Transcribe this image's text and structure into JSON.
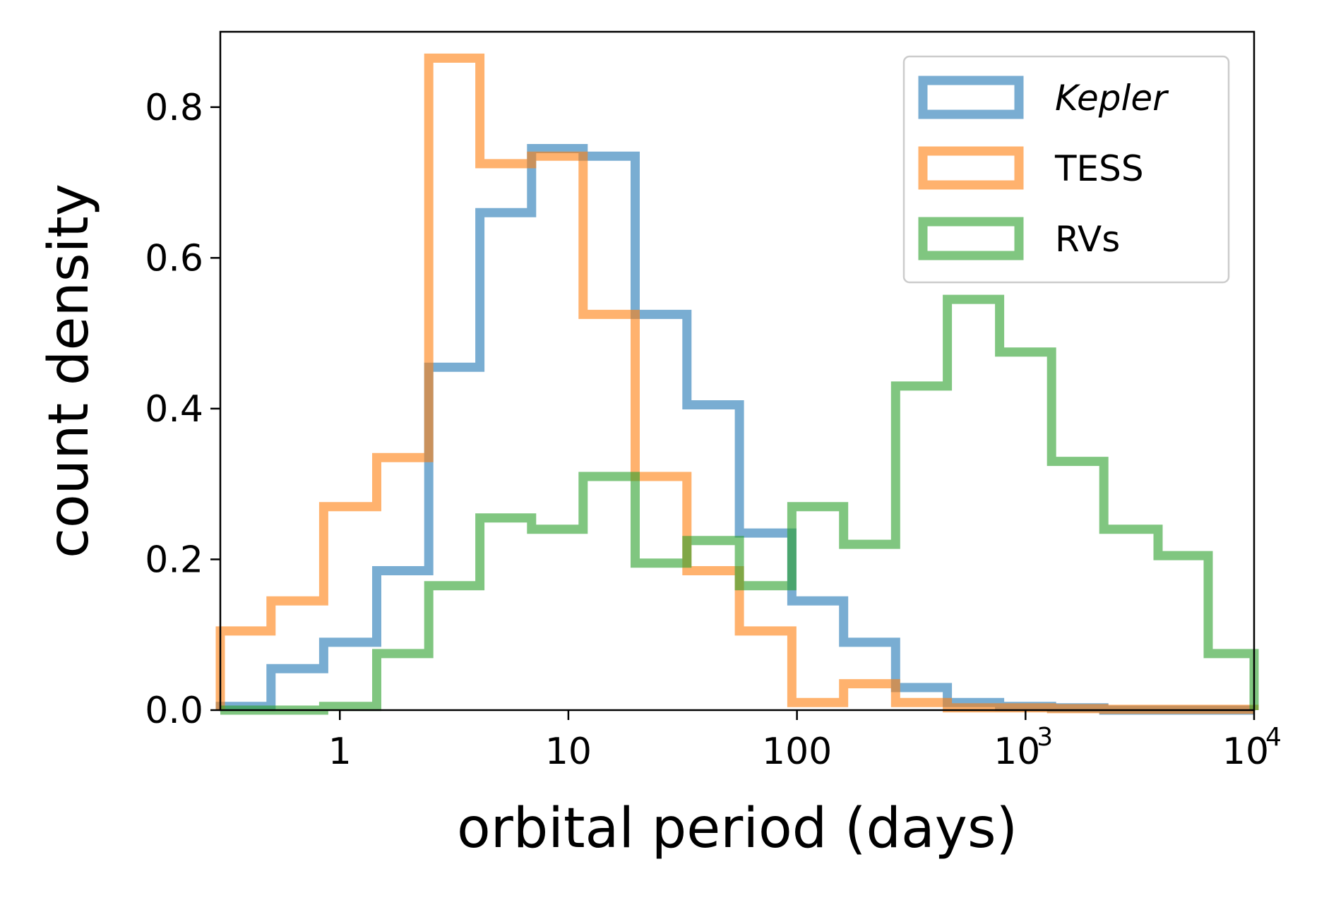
{
  "chart_data": {
    "type": "histogram",
    "xscale": "log",
    "xlabel": "orbital period (days)",
    "ylabel": "count density",
    "xlim": [
      0.3,
      10000
    ],
    "ylim": [
      0,
      0.9
    ],
    "grid": false,
    "legend_position": "top-right",
    "x_ticks": [
      {
        "value": 1,
        "label": "1"
      },
      {
        "value": 10,
        "label": "10"
      },
      {
        "value": 100,
        "label": "100"
      },
      {
        "value": 1000,
        "label": "10",
        "sup": "3"
      },
      {
        "value": 10000,
        "label": "10",
        "sup": "4"
      }
    ],
    "y_ticks": [
      {
        "value": 0.0,
        "label": "0.0"
      },
      {
        "value": 0.2,
        "label": "0.2"
      },
      {
        "value": 0.4,
        "label": "0.4"
      },
      {
        "value": 0.6,
        "label": "0.6"
      },
      {
        "value": 0.8,
        "label": "0.8"
      }
    ],
    "series": [
      {
        "name": "Kepler",
        "italic": true,
        "color": "#1f77b4",
        "bin_edges": [
          0.3,
          0.5,
          0.85,
          1.45,
          2.45,
          4.1,
          6.9,
          11.6,
          19.6,
          33,
          56,
          95,
          160,
          270,
          455,
          770,
          1300,
          2200,
          10000
        ],
        "values": [
          0.005,
          0.055,
          0.09,
          0.185,
          0.455,
          0.66,
          0.745,
          0.735,
          0.525,
          0.405,
          0.235,
          0.145,
          0.09,
          0.03,
          0.01,
          0.005,
          0.003,
          0.0
        ]
      },
      {
        "name": "TESS",
        "italic": false,
        "color": "#ff7f0e",
        "bin_edges": [
          0.3,
          0.5,
          0.85,
          1.45,
          2.45,
          4.1,
          6.9,
          11.6,
          19.6,
          33,
          56,
          95,
          160,
          270,
          455,
          770,
          1300,
          2200,
          10000
        ],
        "values": [
          0.105,
          0.145,
          0.27,
          0.335,
          0.865,
          0.725,
          0.735,
          0.525,
          0.31,
          0.185,
          0.105,
          0.01,
          0.035,
          0.01,
          0.003,
          0.003,
          0.002,
          0.001
        ]
      },
      {
        "name": "RVs",
        "italic": false,
        "color": "#2ca02c",
        "bin_edges": [
          0.3,
          0.5,
          0.85,
          1.45,
          2.45,
          4.1,
          6.9,
          11.6,
          19.6,
          33,
          56,
          95,
          160,
          270,
          455,
          770,
          1300,
          2200,
          3800,
          6300,
          10000
        ],
        "values": [
          0.0,
          0.0,
          0.005,
          0.075,
          0.165,
          0.255,
          0.24,
          0.31,
          0.195,
          0.225,
          0.165,
          0.27,
          0.22,
          0.43,
          0.545,
          0.475,
          0.33,
          0.24,
          0.205,
          0.075
        ]
      }
    ]
  }
}
